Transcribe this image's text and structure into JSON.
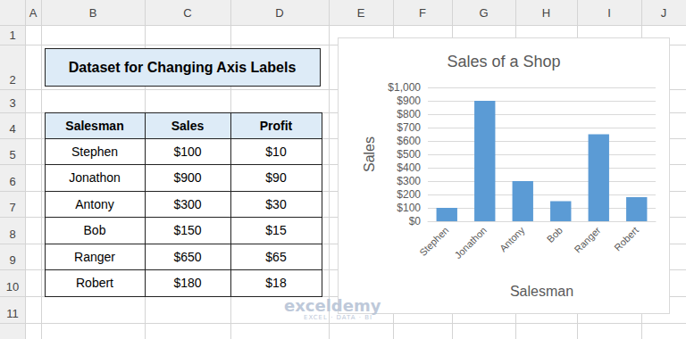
{
  "sheet": {
    "column_letters": [
      "A",
      "B",
      "C",
      "D",
      "E",
      "F",
      "G",
      "H",
      "I",
      "J"
    ],
    "row_numbers": [
      "1",
      "2",
      "3",
      "4",
      "5",
      "6",
      "7",
      "8",
      "9",
      "10",
      "11"
    ],
    "title": "Dataset for Changing Axis Labels",
    "table": {
      "header": [
        "Salesman",
        "Sales",
        "Profit"
      ],
      "rows": [
        [
          "Stephen",
          "$100",
          "$10"
        ],
        [
          "Jonathon",
          "$900",
          "$90"
        ],
        [
          "Antony",
          "$300",
          "$30"
        ],
        [
          "Bob",
          "$150",
          "$15"
        ],
        [
          "Ranger",
          "$650",
          "$65"
        ],
        [
          "Robert",
          "$180",
          "$18"
        ]
      ]
    }
  },
  "watermark": {
    "name": "exceldemy",
    "tagline": "EXCEL · DATA · BI"
  },
  "chart_data": {
    "type": "bar",
    "title": "Sales of a Shop",
    "x_label": "Salesman",
    "y_label": "Sales",
    "categories": [
      "Stephen",
      "Jonathon",
      "Antony",
      "Bob",
      "Ranger",
      "Robert"
    ],
    "values": [
      100,
      900,
      300,
      150,
      650,
      180
    ],
    "color": "#5b9bd5",
    "ylim": [
      0,
      1000
    ],
    "yticks": [
      {
        "value": 0,
        "label": "$0"
      },
      {
        "value": 100,
        "label": "$100"
      },
      {
        "value": 200,
        "label": "$200"
      },
      {
        "value": 300,
        "label": "$300"
      },
      {
        "value": 400,
        "label": "$400"
      },
      {
        "value": 500,
        "label": "$500"
      },
      {
        "value": 600,
        "label": "$600"
      },
      {
        "value": 700,
        "label": "$700"
      },
      {
        "value": 800,
        "label": "$800"
      },
      {
        "value": 900,
        "label": "$900"
      },
      {
        "value": 1000,
        "label": "$1,000"
      }
    ],
    "grid": true
  }
}
